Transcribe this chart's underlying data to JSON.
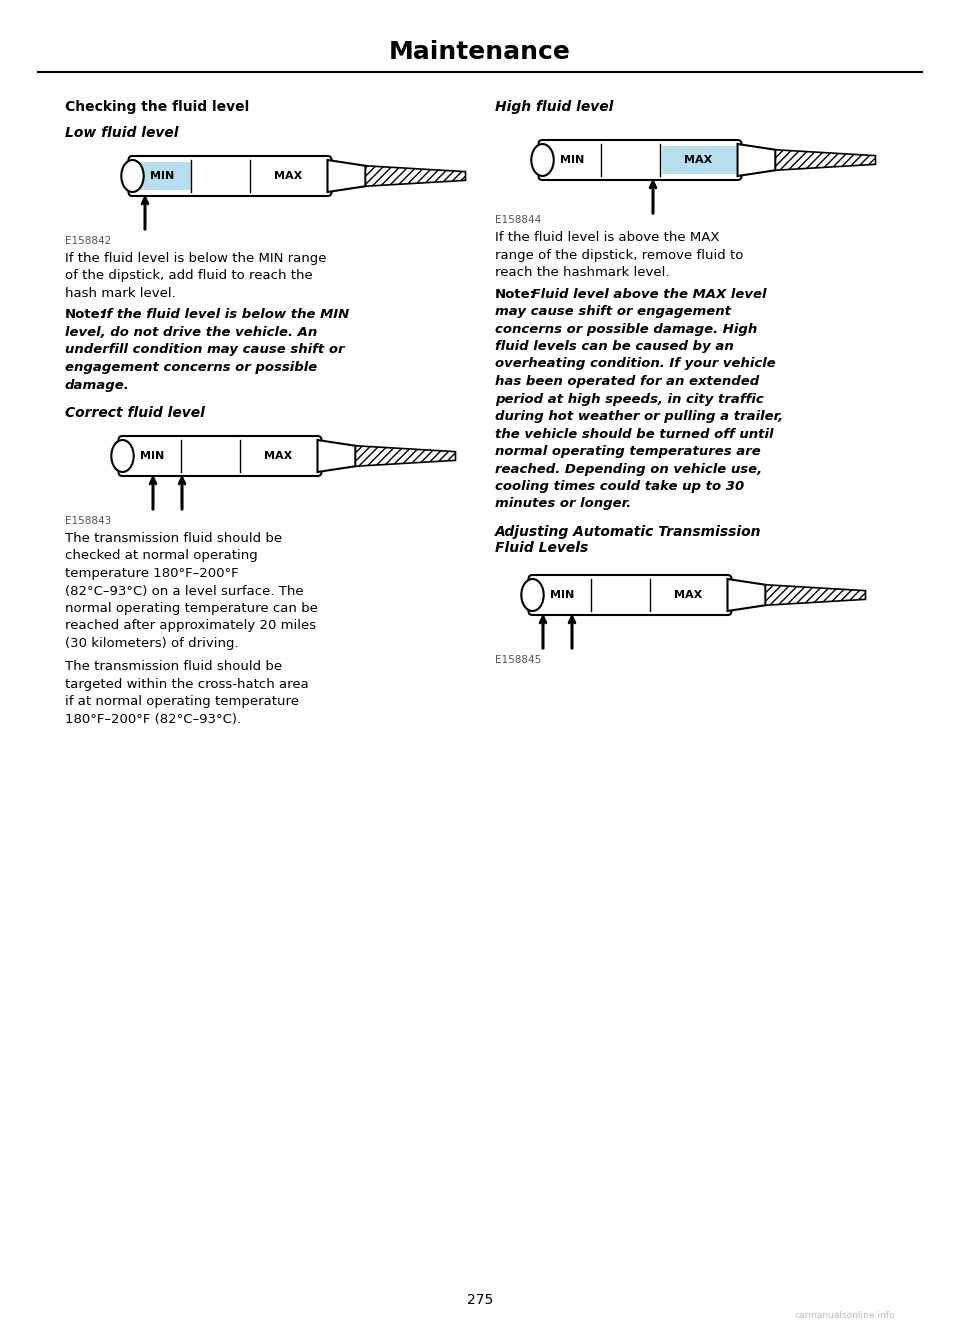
{
  "page_title": "Maintenance",
  "page_number": "275",
  "bg_color": "#ffffff",
  "section_heading": "Checking the fluid level",
  "sub1_heading": "Low fluid level",
  "sub2_heading": "Correct fluid level",
  "sub3_heading": "High fluid level",
  "sub4_heading": "Adjusting Automatic Transmission\nFluid Levels",
  "fig1_code": "E158842",
  "fig2_code": "E158843",
  "fig3_code": "E158844",
  "fig4_code": "E158845",
  "text_low_lines": [
    "If the fluid level is below the MIN range",
    "of the dipstick, add fluid to reach the",
    "hash mark level."
  ],
  "note_low_bold": "Note:",
  "note_low_italic_lines": [
    " If the fluid level is below the MIN",
    "level, do not drive the vehicle. An",
    "underfill condition may cause shift or",
    "engagement concerns or possible",
    "damage."
  ],
  "text_correct_lines": [
    "The transmission fluid should be",
    "checked at normal operating",
    "temperature 180°F–200°F",
    "(82°C–93°C) on a level surface. The",
    "normal operating temperature can be",
    "reached after approximately 20 miles",
    "(30 kilometers) of driving."
  ],
  "text_correct2_lines": [
    "The transmission fluid should be",
    "targeted within the cross-hatch area",
    "if at normal operating temperature",
    "180°F–200°F (82°C–93°C)."
  ],
  "text_high_lines": [
    "If the fluid level is above the MAX",
    "range of the dipstick, remove fluid to",
    "reach the hashmark level."
  ],
  "note_high_bold": "Note:",
  "note_high_italic_lines": [
    " Fluid level above the MAX level",
    "may cause shift or engagement",
    "concerns or possible damage. High",
    "fluid levels can be caused by an",
    "overheating condition. If your vehicle",
    "has been operated for an extended",
    "period at high speeds, in city traffic",
    "during hot weather or pulling a trailer,",
    "the vehicle should be turned off until",
    "normal operating temperatures are",
    "reached. Depending on vehicle use,",
    "cooling times could take up to 30",
    "minutes or longer."
  ],
  "dipstick_blue_fill": "#b8dff0",
  "watermark": "carmanualsonline.info"
}
